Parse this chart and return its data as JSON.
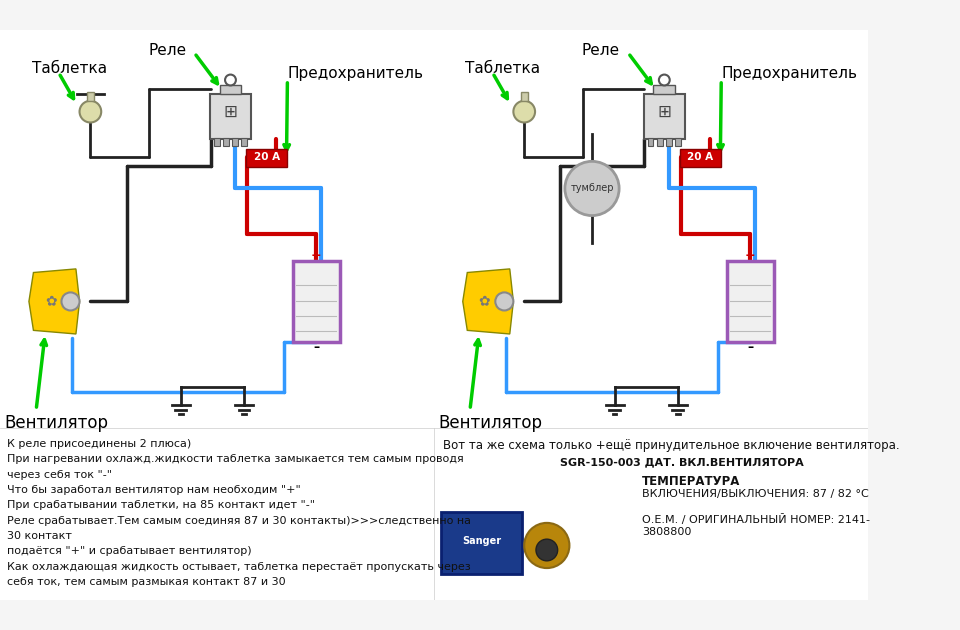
{
  "bg_color": "#f0f0f0",
  "title": "",
  "left_diagram": {
    "label_relay": "Реле",
    "label_tablet": "Таблетка",
    "label_fuse": "Предохранитель",
    "label_fan": "Вентилятор",
    "fuse_text": "20 А"
  },
  "right_diagram": {
    "label_relay": "Реле",
    "label_tablet": "Таблетка",
    "label_fuse": "Предохранитель",
    "label_fan": "Вентилятор",
    "label_tumbler": "тумблер",
    "fuse_text": "20 А"
  },
  "bottom_left_text": [
    "К реле присоединены 2 плюса)",
    "При нагревании охлажд.жидкости таблетка замыкается тем самым проводя",
    "через себя ток \"-\"",
    "Что бы заработал вентилятор нам необходим \"+\"",
    "При срабатывании таблетки, на 85 контакт идет \"-\"",
    "Реле срабатывает.Тем самым соединяя 87 и 30 контакты)>>>следственно на",
    "30 контакт",
    "подаётся \"+\" и срабатывает вентилятор)",
    "Как охлаждающая жидкость остывает, таблетка перестаёт пропускать через",
    "себя ток, тем самым размыкая контакт 87 и 30"
  ],
  "bottom_right_text": [
    "Вот та же схема только +ещё принудительное включение вентилятора.",
    "SGR-150-003 ДАТ. ВКЛ.ВЕНТИЛЯТОРА",
    "",
    "ТЕМПЕРАТУРА",
    "ВКЛЮЧЕНИЯ/ВЫКЛЮЧЕНИЯ: 87 / 82 °С",
    "",
    "О.Е.М. / ОРИГИНАЛЬНЫЙ НОМЕР: 2141-",
    "3808800"
  ],
  "colors": {
    "red_wire": "#cc0000",
    "blue_wire": "#3399ff",
    "black_wire": "#222222",
    "green_arrow": "#00cc00",
    "relay_body": "#e8e8e8",
    "fuse_red": "#cc0000",
    "fuse_yellow": "#ffcc00",
    "battery_border": "#9b59b6",
    "battery_fill": "#d0d0d0",
    "fan_yellow": "#ffcc00",
    "tumbler_gray": "#999999",
    "diagram_bg": "#ffffff"
  }
}
